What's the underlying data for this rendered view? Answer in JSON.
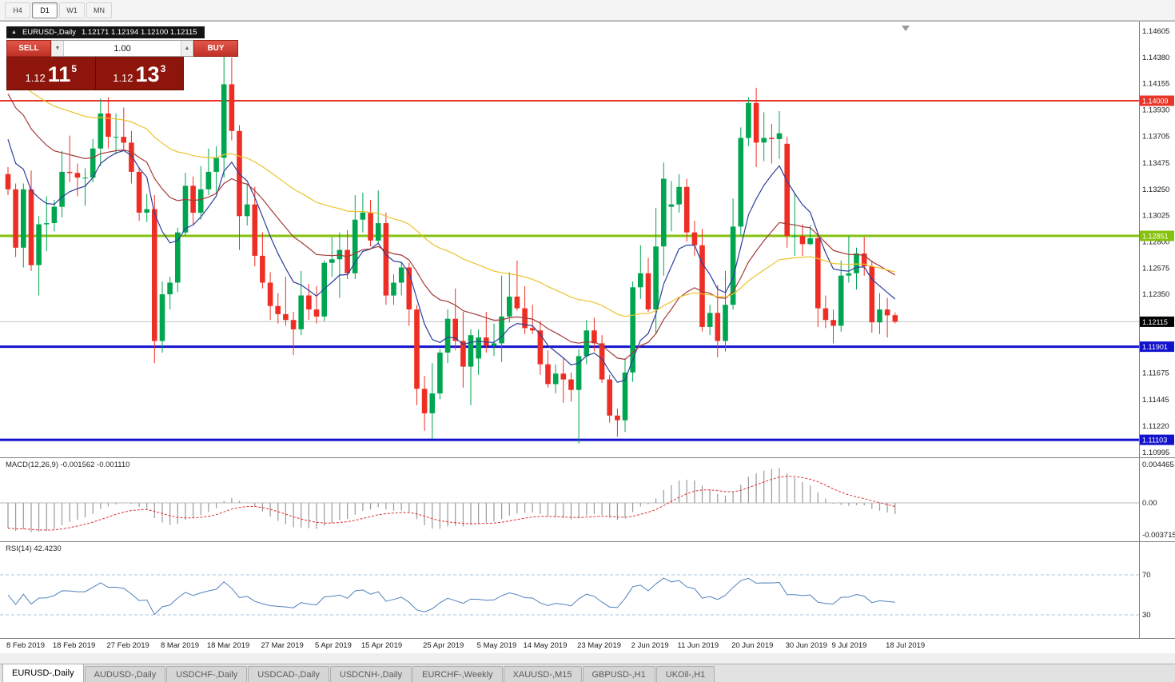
{
  "toolbar": {
    "timeframes": [
      {
        "label": "H4",
        "active": false
      },
      {
        "label": "D1",
        "active": true
      },
      {
        "label": "W1",
        "active": false
      },
      {
        "label": "MN",
        "active": false
      }
    ]
  },
  "window": {
    "title": "EURUSD-,Daily",
    "ohlc": "1.12171 1.12194 1.12100 1.12115"
  },
  "trade_panel": {
    "sell_label": "SELL",
    "buy_label": "BUY",
    "volume": "1.00",
    "sell_price": {
      "prefix": "1.12",
      "big": "11",
      "sup": "5"
    },
    "buy_price": {
      "prefix": "1.12",
      "big": "13",
      "sup": "3"
    }
  },
  "macd": {
    "label": "MACD(12,26,9) -0.001562 -0.001110",
    "axis_labels": [
      "0.004465",
      "0.00",
      "-0.003715"
    ],
    "axis_values": [
      0.004465,
      0,
      -0.003715
    ],
    "colors": {
      "histogram": "#9a9a9a",
      "signal": "#e03030"
    }
  },
  "rsi": {
    "label": "RSI(14) 42.4230",
    "axis_labels": [
      "70",
      "30"
    ],
    "levels": [
      70,
      30
    ],
    "color": "#4f81bd",
    "level_color": "#a8c4de"
  },
  "tabs": [
    "EURUSD-,Daily",
    "AUDUSD-,Daily",
    "USDCHF-,Daily",
    "USDCAD-,Daily",
    "USDCNH-,Daily",
    "EURCHF-,Weekly",
    "XAUUSD-,M15",
    "GBPUSD-,H1",
    "UKOil-,H1"
  ],
  "active_tab": 0,
  "chart_data": {
    "type": "candlestick",
    "symbol": "EURUSD-",
    "timeframe": "Daily",
    "price_range": {
      "top": 1.1466,
      "bottom": 1.1098
    },
    "colors": {
      "up": "#00a550",
      "down": "#ee2e24"
    },
    "mas": [
      {
        "period": 8,
        "seed": 1.138,
        "color": "#2c3e9e"
      },
      {
        "period": 21,
        "seed": 1.1415,
        "color": "#a33a3a"
      },
      {
        "period": 50,
        "seed": 1.1428,
        "color": "#edc32a"
      }
    ],
    "hlines": [
      {
        "label": "1.14009",
        "value": 1.14009,
        "color": "#e8352a",
        "width": 2
      },
      {
        "label": "1.12851",
        "value": 1.12851,
        "color": "#86c10e",
        "width": 3
      },
      {
        "label": "1.11901",
        "value": 1.11901,
        "color": "#1212cc",
        "width": 3
      },
      {
        "label": "1.11103",
        "value": 1.11103,
        "color": "#1212cc",
        "width": 3
      }
    ],
    "current_price": {
      "label": "1.12115",
      "value": 1.12115
    },
    "price_axis_labels": [
      "1.14605",
      "1.14380",
      "1.14155",
      "1.13930",
      "1.13705",
      "1.13475",
      "1.13250",
      "1.13025",
      "1.12800",
      "1.12575",
      "1.12350",
      "1.11675",
      "1.11445",
      "1.11220",
      "1.10995"
    ],
    "date_labels": [
      {
        "label": "8 Feb 2019",
        "bar": 0
      },
      {
        "label": "18 Feb 2019",
        "bar": 6
      },
      {
        "label": "27 Feb 2019",
        "bar": 13
      },
      {
        "label": "8 Mar 2019",
        "bar": 20
      },
      {
        "label": "18 Mar 2019",
        "bar": 26
      },
      {
        "label": "27 Mar 2019",
        "bar": 33
      },
      {
        "label": "5 Apr 2019",
        "bar": 40
      },
      {
        "label": "15 Apr 2019",
        "bar": 46
      },
      {
        "label": "25 Apr 2019",
        "bar": 54
      },
      {
        "label": "5 May 2019",
        "bar": 61
      },
      {
        "label": "14 May 2019",
        "bar": 67
      },
      {
        "label": "23 May 2019",
        "bar": 74
      },
      {
        "label": "2 Jun 2019",
        "bar": 81
      },
      {
        "label": "11 Jun 2019",
        "bar": 87
      },
      {
        "label": "20 Jun 2019",
        "bar": 94
      },
      {
        "label": "30 Jun 2019",
        "bar": 101
      },
      {
        "label": "9 Jul 2019",
        "bar": 107
      },
      {
        "label": "18 Jul 2019",
        "bar": 114
      }
    ],
    "candles": [
      [
        1.1338,
        1.1344,
        1.132,
        1.1325
      ],
      [
        1.1325,
        1.133,
        1.1267,
        1.1275
      ],
      [
        1.1275,
        1.133,
        1.1258,
        1.1325
      ],
      [
        1.1325,
        1.1341,
        1.1255,
        1.126
      ],
      [
        1.126,
        1.1302,
        1.1234,
        1.1295
      ],
      [
        1.1295,
        1.1319,
        1.1272,
        1.1296
      ],
      [
        1.1296,
        1.1316,
        1.1289,
        1.131
      ],
      [
        1.131,
        1.1358,
        1.1301,
        1.134
      ],
      [
        1.134,
        1.1371,
        1.1331,
        1.1339
      ],
      [
        1.1339,
        1.1347,
        1.1319,
        1.1335
      ],
      [
        1.1335,
        1.1343,
        1.1311,
        1.1335
      ],
      [
        1.1335,
        1.1368,
        1.1331,
        1.136
      ],
      [
        1.136,
        1.1403,
        1.1345,
        1.139
      ],
      [
        1.139,
        1.1404,
        1.136,
        1.137
      ],
      [
        1.137,
        1.139,
        1.1355,
        1.137
      ],
      [
        1.137,
        1.1395,
        1.1358,
        1.1365
      ],
      [
        1.1365,
        1.1375,
        1.133,
        1.134
      ],
      [
        1.134,
        1.1344,
        1.1298,
        1.1305
      ],
      [
        1.1305,
        1.1321,
        1.1297,
        1.1308
      ],
      [
        1.1308,
        1.132,
        1.1176,
        1.1195
      ],
      [
        1.1195,
        1.1246,
        1.1185,
        1.1235
      ],
      [
        1.1235,
        1.125,
        1.1222,
        1.1245
      ],
      [
        1.1245,
        1.1292,
        1.1237,
        1.1288
      ],
      [
        1.1288,
        1.1339,
        1.1285,
        1.1328
      ],
      [
        1.1328,
        1.1336,
        1.1294,
        1.1305
      ],
      [
        1.1305,
        1.1345,
        1.1299,
        1.1325
      ],
      [
        1.1325,
        1.136,
        1.132,
        1.134
      ],
      [
        1.134,
        1.1362,
        1.1322,
        1.1352
      ],
      [
        1.1352,
        1.1448,
        1.1335,
        1.1415
      ],
      [
        1.1415,
        1.1438,
        1.1367,
        1.1375
      ],
      [
        1.1375,
        1.138,
        1.1273,
        1.1302
      ],
      [
        1.1302,
        1.133,
        1.1294,
        1.1312
      ],
      [
        1.1312,
        1.1327,
        1.1259,
        1.1268
      ],
      [
        1.1268,
        1.1288,
        1.124,
        1.1245
      ],
      [
        1.1245,
        1.1254,
        1.1213,
        1.1225
      ],
      [
        1.1225,
        1.1236,
        1.121,
        1.1218
      ],
      [
        1.1218,
        1.125,
        1.1208,
        1.1213
      ],
      [
        1.1213,
        1.122,
        1.1183,
        1.1205
      ],
      [
        1.1205,
        1.1255,
        1.12,
        1.1234
      ],
      [
        1.1234,
        1.1244,
        1.1213,
        1.1222
      ],
      [
        1.1222,
        1.1242,
        1.121,
        1.1216
      ],
      [
        1.1216,
        1.1264,
        1.1212,
        1.1262
      ],
      [
        1.1262,
        1.1284,
        1.125,
        1.1265
      ],
      [
        1.1265,
        1.1288,
        1.1232,
        1.1273
      ],
      [
        1.1273,
        1.129,
        1.1248,
        1.1253
      ],
      [
        1.1253,
        1.132,
        1.1248,
        1.1299
      ],
      [
        1.1299,
        1.1322,
        1.1288,
        1.1305
      ],
      [
        1.1305,
        1.1316,
        1.1276,
        1.1281
      ],
      [
        1.1281,
        1.1324,
        1.1278,
        1.1296
      ],
      [
        1.1296,
        1.1305,
        1.1226,
        1.1234
      ],
      [
        1.1234,
        1.1252,
        1.1226,
        1.1245
      ],
      [
        1.1245,
        1.1263,
        1.1234,
        1.1258
      ],
      [
        1.1258,
        1.1262,
        1.1208,
        1.1222
      ],
      [
        1.1222,
        1.1226,
        1.114,
        1.1154
      ],
      [
        1.1154,
        1.1165,
        1.1118,
        1.1133
      ],
      [
        1.1133,
        1.1176,
        1.1111,
        1.115
      ],
      [
        1.115,
        1.1188,
        1.1145,
        1.1185
      ],
      [
        1.1185,
        1.1222,
        1.1176,
        1.1214
      ],
      [
        1.1214,
        1.124,
        1.1187,
        1.1195
      ],
      [
        1.1195,
        1.122,
        1.1155,
        1.1173
      ],
      [
        1.1173,
        1.1205,
        1.114,
        1.12
      ],
      [
        1.118,
        1.1205,
        1.1166,
        1.1198
      ],
      [
        1.1198,
        1.122,
        1.1185,
        1.1191
      ],
      [
        1.1191,
        1.121,
        1.1182,
        1.1193
      ],
      [
        1.1193,
        1.1251,
        1.1177,
        1.1216
      ],
      [
        1.1216,
        1.1254,
        1.1211,
        1.1233
      ],
      [
        1.1233,
        1.1264,
        1.1221,
        1.1223
      ],
      [
        1.1223,
        1.1242,
        1.1201,
        1.1206
      ],
      [
        1.1206,
        1.1226,
        1.1201,
        1.1204
      ],
      [
        1.1204,
        1.1212,
        1.1166,
        1.1175
      ],
      [
        1.1175,
        1.1187,
        1.1155,
        1.1158
      ],
      [
        1.1158,
        1.1175,
        1.115,
        1.1167
      ],
      [
        1.1167,
        1.118,
        1.1142,
        1.1162
      ],
      [
        1.1162,
        1.1168,
        1.1143,
        1.1153
      ],
      [
        1.1153,
        1.1188,
        1.1107,
        1.1182
      ],
      [
        1.1182,
        1.1213,
        1.1175,
        1.1204
      ],
      [
        1.1204,
        1.1215,
        1.1186,
        1.1193
      ],
      [
        1.1193,
        1.12,
        1.1159,
        1.1162
      ],
      [
        1.1162,
        1.1166,
        1.1125,
        1.1131
      ],
      [
        1.1131,
        1.1137,
        1.1113,
        1.1127
      ],
      [
        1.1127,
        1.118,
        1.1117,
        1.1168
      ],
      [
        1.1168,
        1.1246,
        1.116,
        1.1241
      ],
      [
        1.1241,
        1.1277,
        1.1231,
        1.1253
      ],
      [
        1.1253,
        1.1266,
        1.122,
        1.1222
      ],
      [
        1.1222,
        1.1309,
        1.1201,
        1.1276
      ],
      [
        1.1276,
        1.1348,
        1.1251,
        1.1334
      ],
      [
        1.131,
        1.1332,
        1.1289,
        1.1312
      ],
      [
        1.1312,
        1.1338,
        1.1305,
        1.1327
      ],
      [
        1.1327,
        1.1334,
        1.128,
        1.1288
      ],
      [
        1.1288,
        1.1298,
        1.1268,
        1.1277
      ],
      [
        1.1277,
        1.1291,
        1.1203,
        1.1207
      ],
      [
        1.1207,
        1.1226,
        1.12,
        1.1219
      ],
      [
        1.1219,
        1.1243,
        1.1181,
        1.1195
      ],
      [
        1.1195,
        1.1255,
        1.1186,
        1.1226
      ],
      [
        1.1226,
        1.1317,
        1.1222,
        1.1293
      ],
      [
        1.1293,
        1.1378,
        1.1285,
        1.1369
      ],
      [
        1.1369,
        1.1404,
        1.1362,
        1.1399
      ],
      [
        1.1399,
        1.1412,
        1.1344,
        1.1365
      ],
      [
        1.1365,
        1.1391,
        1.1349,
        1.1369
      ],
      [
        1.1369,
        1.1381,
        1.1347,
        1.1368
      ],
      [
        1.1368,
        1.1392,
        1.1351,
        1.1373
      ],
      [
        1.1364,
        1.137,
        1.1275,
        1.1285
      ],
      [
        1.1285,
        1.1322,
        1.1268,
        1.1285
      ],
      [
        1.1285,
        1.1295,
        1.1268,
        1.1278
      ],
      [
        1.1278,
        1.1294,
        1.1277,
        1.1283
      ],
      [
        1.1283,
        1.1287,
        1.1207,
        1.1223
      ],
      [
        1.1223,
        1.1234,
        1.1206,
        1.1213
      ],
      [
        1.1213,
        1.1222,
        1.1193,
        1.1208
      ],
      [
        1.1208,
        1.1264,
        1.1203,
        1.1251
      ],
      [
        1.1251,
        1.1285,
        1.1245,
        1.1253
      ],
      [
        1.1253,
        1.1275,
        1.1239,
        1.127
      ],
      [
        1.127,
        1.1284,
        1.1251,
        1.1259
      ],
      [
        1.1259,
        1.1264,
        1.1202,
        1.1211
      ],
      [
        1.1211,
        1.1236,
        1.1201,
        1.1222
      ],
      [
        1.1222,
        1.1232,
        1.1198,
        1.1217
      ],
      [
        1.12171,
        1.12194,
        1.121,
        1.12115
      ]
    ]
  }
}
